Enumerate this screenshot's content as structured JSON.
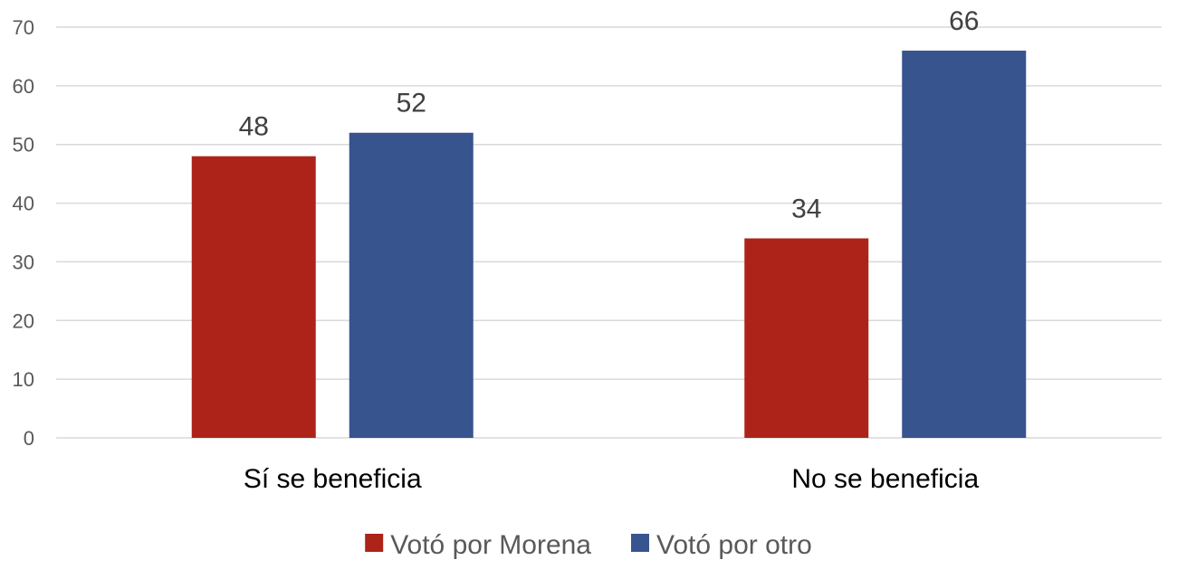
{
  "chart_data": {
    "type": "bar",
    "categories": [
      "Sí se beneficia",
      "No se beneficia"
    ],
    "series": [
      {
        "name": "Votó por Morena",
        "values": [
          48,
          34
        ],
        "color": "#ad231a"
      },
      {
        "name": "Votó por otro",
        "values": [
          52,
          66
        ],
        "color": "#38548f"
      }
    ],
    "ylim": [
      0,
      70
    ],
    "yticks": [
      0,
      10,
      20,
      30,
      40,
      50,
      60,
      70
    ],
    "title": "",
    "xlabel": "",
    "ylabel": "",
    "grid": true,
    "legend": "bottom-center",
    "data_labels": true
  }
}
